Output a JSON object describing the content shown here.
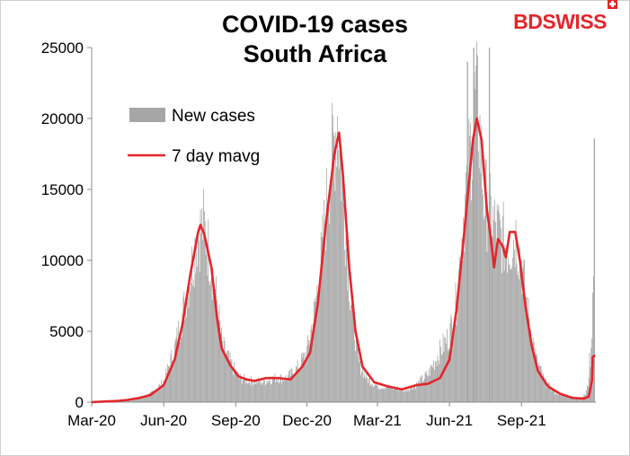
{
  "brand": {
    "part1": "BD",
    "part2": "SWISS"
  },
  "chart_data": {
    "type": "bar+line",
    "title": [
      "COVID-19 cases",
      "South Africa"
    ],
    "xlabel": "",
    "ylabel": "",
    "ylim": [
      0,
      25000
    ],
    "yticks": [
      "0",
      "5000",
      "10000",
      "15000",
      "20000",
      "25000"
    ],
    "xticks": [
      "Mar-20",
      "Jun-20",
      "Sep-20",
      "Dec-20",
      "Mar-21",
      "Jun-21",
      "Sep-21"
    ],
    "xlim": [
      "2020-03-01",
      "2021-12-05"
    ],
    "legend": {
      "position": "top-left",
      "entries": [
        "New cases",
        "7 day mavg"
      ]
    },
    "colors": {
      "bars": "#a6a6a6",
      "line": "#e3262b"
    },
    "series": [
      {
        "name": "New cases",
        "kind": "bar",
        "points": [
          [
            "2020-03-01",
            0
          ],
          [
            "2020-03-20",
            60
          ],
          [
            "2020-04-01",
            100
          ],
          [
            "2020-04-15",
            200
          ],
          [
            "2020-05-01",
            350
          ],
          [
            "2020-05-15",
            600
          ],
          [
            "2020-06-01",
            1500
          ],
          [
            "2020-06-15",
            4000
          ],
          [
            "2020-06-25",
            6500
          ],
          [
            "2020-07-05",
            9500
          ],
          [
            "2020-07-13",
            12300
          ],
          [
            "2020-07-22",
            13200
          ],
          [
            "2020-07-30",
            11000
          ],
          [
            "2020-08-08",
            7500
          ],
          [
            "2020-08-15",
            4200
          ],
          [
            "2020-08-25",
            3000
          ],
          [
            "2020-09-05",
            1800
          ],
          [
            "2020-09-20",
            1600
          ],
          [
            "2020-10-05",
            1500
          ],
          [
            "2020-10-20",
            1800
          ],
          [
            "2020-11-05",
            1800
          ],
          [
            "2020-11-20",
            2600
          ],
          [
            "2020-12-01",
            3800
          ],
          [
            "2020-12-10",
            6500
          ],
          [
            "2020-12-20",
            11000
          ],
          [
            "2020-12-28",
            16000
          ],
          [
            "2021-01-05",
            19500
          ],
          [
            "2021-01-09",
            21500
          ],
          [
            "2021-01-15",
            16500
          ],
          [
            "2021-01-25",
            8500
          ],
          [
            "2021-02-05",
            3000
          ],
          [
            "2021-02-15",
            1800
          ],
          [
            "2021-03-01",
            1200
          ],
          [
            "2021-03-20",
            1100
          ],
          [
            "2021-04-05",
            900
          ],
          [
            "2021-04-20",
            1300
          ],
          [
            "2021-05-05",
            2100
          ],
          [
            "2021-05-20",
            3800
          ],
          [
            "2021-06-01",
            5000
          ],
          [
            "2021-06-10",
            7500
          ],
          [
            "2021-06-20",
            14500
          ],
          [
            "2021-06-28",
            19000
          ],
          [
            "2021-07-04",
            22500
          ],
          [
            "2021-07-08",
            21500
          ],
          [
            "2021-07-15",
            15500
          ],
          [
            "2021-07-25",
            13500
          ],
          [
            "2021-08-05",
            12500
          ],
          [
            "2021-08-15",
            11500
          ],
          [
            "2021-08-25",
            12500
          ],
          [
            "2021-09-01",
            10500
          ],
          [
            "2021-09-10",
            6500
          ],
          [
            "2021-09-20",
            3200
          ],
          [
            "2021-10-01",
            1500
          ],
          [
            "2021-10-15",
            700
          ],
          [
            "2021-11-01",
            400
          ],
          [
            "2021-11-15",
            300
          ],
          [
            "2021-11-22",
            600
          ],
          [
            "2021-11-25",
            1300
          ],
          [
            "2021-11-27",
            3000
          ],
          [
            "2021-11-29",
            3500
          ],
          [
            "2021-12-01",
            8500
          ],
          [
            "2021-12-02",
            11500
          ]
        ],
        "spikes": [
          [
            "2021-06-24",
            24000
          ],
          [
            "2021-07-02",
            25000
          ],
          [
            "2021-07-06",
            24500
          ],
          [
            "2021-07-22",
            25000
          ],
          [
            "2021-12-03",
            18600
          ]
        ]
      },
      {
        "name": "7 day mavg",
        "kind": "line",
        "points": [
          [
            "2020-03-01",
            0
          ],
          [
            "2020-03-20",
            50
          ],
          [
            "2020-04-01",
            80
          ],
          [
            "2020-04-15",
            150
          ],
          [
            "2020-05-01",
            300
          ],
          [
            "2020-05-15",
            500
          ],
          [
            "2020-06-01",
            1200
          ],
          [
            "2020-06-15",
            3000
          ],
          [
            "2020-06-25",
            5500
          ],
          [
            "2020-07-05",
            9000
          ],
          [
            "2020-07-15",
            12000
          ],
          [
            "2020-07-18",
            12500
          ],
          [
            "2020-07-23",
            11800
          ],
          [
            "2020-08-01",
            9500
          ],
          [
            "2020-08-08",
            6000
          ],
          [
            "2020-08-14",
            3800
          ],
          [
            "2020-08-25",
            2600
          ],
          [
            "2020-09-05",
            1800
          ],
          [
            "2020-09-15",
            1600
          ],
          [
            "2020-09-25",
            1500
          ],
          [
            "2020-10-10",
            1700
          ],
          [
            "2020-10-25",
            1700
          ],
          [
            "2020-11-10",
            1600
          ],
          [
            "2020-11-25",
            2500
          ],
          [
            "2020-12-05",
            3500
          ],
          [
            "2020-12-15",
            7000
          ],
          [
            "2020-12-25",
            12500
          ],
          [
            "2021-01-05",
            17500
          ],
          [
            "2021-01-11",
            19000
          ],
          [
            "2021-01-16",
            16000
          ],
          [
            "2021-01-24",
            9500
          ],
          [
            "2021-02-01",
            5000
          ],
          [
            "2021-02-10",
            2500
          ],
          [
            "2021-02-25",
            1400
          ],
          [
            "2021-03-15",
            1100
          ],
          [
            "2021-04-01",
            900
          ],
          [
            "2021-04-20",
            1200
          ],
          [
            "2021-05-05",
            1300
          ],
          [
            "2021-05-20",
            1700
          ],
          [
            "2021-06-01",
            3000
          ],
          [
            "2021-06-10",
            6500
          ],
          [
            "2021-06-20",
            12000
          ],
          [
            "2021-07-01",
            18500
          ],
          [
            "2021-07-06",
            20000
          ],
          [
            "2021-07-12",
            18500
          ],
          [
            "2021-07-19",
            13500
          ],
          [
            "2021-07-24",
            11500
          ],
          [
            "2021-07-28",
            9500
          ],
          [
            "2021-08-02",
            11500
          ],
          [
            "2021-08-08",
            11000
          ],
          [
            "2021-08-12",
            10200
          ],
          [
            "2021-08-17",
            12000
          ],
          [
            "2021-08-24",
            12000
          ],
          [
            "2021-08-30",
            10000
          ],
          [
            "2021-09-06",
            6800
          ],
          [
            "2021-09-14",
            4000
          ],
          [
            "2021-09-22",
            2200
          ],
          [
            "2021-10-05",
            1100
          ],
          [
            "2021-10-20",
            600
          ],
          [
            "2021-11-05",
            300
          ],
          [
            "2021-11-20",
            250
          ],
          [
            "2021-11-26",
            400
          ],
          [
            "2021-11-30",
            1500
          ],
          [
            "2021-12-01",
            3200
          ],
          [
            "2021-12-04",
            3300
          ]
        ]
      }
    ]
  }
}
